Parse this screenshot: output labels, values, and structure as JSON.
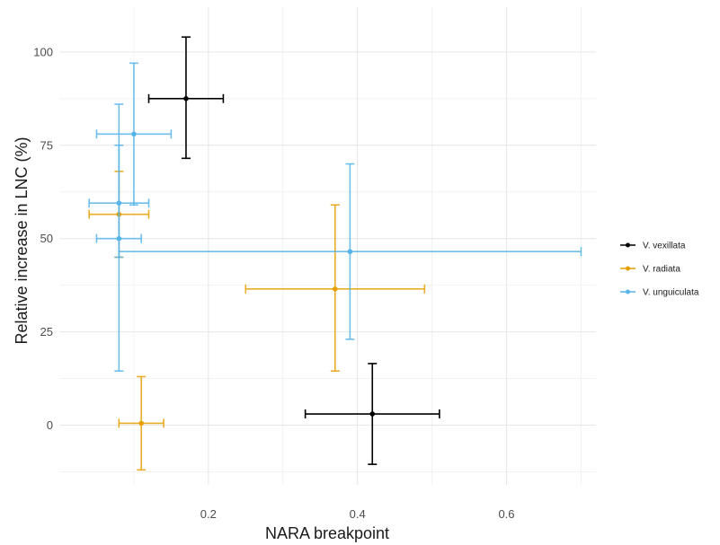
{
  "chart_data": {
    "type": "scatter",
    "xlabel": "NARA breakpoint",
    "ylabel": "Relative increase in LNC (%)",
    "xlim": [
      0.0,
      0.72
    ],
    "ylim": [
      -16,
      112
    ],
    "x_ticks": [
      0.2,
      0.4,
      0.6
    ],
    "x_tick_labels": [
      "0.2",
      "0.4",
      "0.6"
    ],
    "y_ticks": [
      0,
      25,
      50,
      75,
      100
    ],
    "y_tick_labels": [
      "0",
      "25",
      "50",
      "75",
      "100"
    ],
    "grid": true,
    "legend_position": "right",
    "series": [
      {
        "name": "V. vexillata",
        "color": "#000000",
        "points": [
          {
            "x": 0.17,
            "y": 87.5,
            "xmin": 0.12,
            "xmax": 0.22,
            "ymin": 71.5,
            "ymax": 104
          },
          {
            "x": 0.42,
            "y": 3.0,
            "xmin": 0.33,
            "xmax": 0.51,
            "ymin": -10.5,
            "ymax": 16.5
          }
        ]
      },
      {
        "name": "V. radiata",
        "color": "#E69F00",
        "points": [
          {
            "x": 0.08,
            "y": 56.5,
            "xmin": 0.04,
            "xmax": 0.12,
            "ymin": 45,
            "ymax": 68
          },
          {
            "x": 0.37,
            "y": 36.5,
            "xmin": 0.25,
            "xmax": 0.49,
            "ymin": 14.5,
            "ymax": 59
          },
          {
            "x": 0.11,
            "y": 0.5,
            "xmin": 0.08,
            "xmax": 0.14,
            "ymin": -12,
            "ymax": 13
          }
        ]
      },
      {
        "name": "V. unguiculata",
        "color": "#56B4E9",
        "points": [
          {
            "x": 0.1,
            "y": 78,
            "xmin": 0.05,
            "xmax": 0.15,
            "ymin": 59,
            "ymax": 97
          },
          {
            "x": 0.08,
            "y": 59.5,
            "xmin": 0.04,
            "xmax": 0.12,
            "ymin": 45,
            "ymax": 75
          },
          {
            "x": 0.08,
            "y": 50,
            "xmin": 0.05,
            "xmax": 0.11,
            "ymin": 14.5,
            "ymax": 86
          },
          {
            "x": 0.39,
            "y": 46.5,
            "xmin": 0.08,
            "xmax": 0.7,
            "ymin": 23,
            "ymax": 70
          }
        ]
      }
    ]
  }
}
